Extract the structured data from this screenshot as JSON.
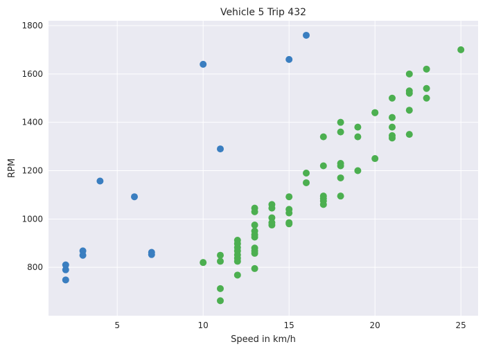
{
  "chart_data": {
    "type": "scatter",
    "title": "Vehicle 5 Trip 432",
    "xlabel": "Speed in km/h",
    "ylabel": "RPM",
    "xlim": [
      1,
      26
    ],
    "ylim": [
      600,
      1820
    ],
    "xticks": [
      5,
      10,
      15,
      20,
      25
    ],
    "yticks": [
      800,
      1000,
      1200,
      1400,
      1600,
      1800
    ],
    "grid": true,
    "background": "#EAEAF2",
    "series": [
      {
        "color": "#3A7EC0",
        "points": [
          [
            2,
            810
          ],
          [
            2,
            790
          ],
          [
            2,
            748
          ],
          [
            3,
            868
          ],
          [
            3,
            850
          ],
          [
            4,
            1157
          ],
          [
            6,
            1092
          ],
          [
            7,
            862
          ],
          [
            7,
            853
          ],
          [
            10,
            1640
          ],
          [
            11,
            1290
          ],
          [
            15,
            1660
          ],
          [
            16,
            1760
          ]
        ]
      },
      {
        "color": "#4CAF50",
        "points": [
          [
            10,
            820
          ],
          [
            11,
            850
          ],
          [
            11,
            825
          ],
          [
            11,
            712
          ],
          [
            11,
            662
          ],
          [
            12,
            912
          ],
          [
            12,
            898
          ],
          [
            12,
            882
          ],
          [
            12,
            868
          ],
          [
            12,
            852
          ],
          [
            12,
            838
          ],
          [
            12,
            825
          ],
          [
            12,
            768
          ],
          [
            13,
            1045
          ],
          [
            13,
            1030
          ],
          [
            13,
            975
          ],
          [
            13,
            950
          ],
          [
            13,
            935
          ],
          [
            13,
            925
          ],
          [
            13,
            880
          ],
          [
            13,
            868
          ],
          [
            13,
            858
          ],
          [
            13,
            795
          ],
          [
            14,
            1060
          ],
          [
            14,
            1045
          ],
          [
            14,
            1005
          ],
          [
            14,
            985
          ],
          [
            14,
            975
          ],
          [
            15,
            1092
          ],
          [
            15,
            1040
          ],
          [
            15,
            1025
          ],
          [
            15,
            985
          ],
          [
            15,
            980
          ],
          [
            16,
            1190
          ],
          [
            16,
            1150
          ],
          [
            17,
            1340
          ],
          [
            17,
            1220
          ],
          [
            17,
            1095
          ],
          [
            17,
            1085
          ],
          [
            17,
            1075
          ],
          [
            17,
            1060
          ],
          [
            18,
            1400
          ],
          [
            18,
            1360
          ],
          [
            18,
            1230
          ],
          [
            18,
            1220
          ],
          [
            18,
            1170
          ],
          [
            18,
            1095
          ],
          [
            19,
            1380
          ],
          [
            19,
            1340
          ],
          [
            19,
            1200
          ],
          [
            20,
            1440
          ],
          [
            20,
            1440
          ],
          [
            20,
            1250
          ],
          [
            21,
            1500
          ],
          [
            21,
            1420
          ],
          [
            21,
            1380
          ],
          [
            21,
            1345
          ],
          [
            21,
            1335
          ],
          [
            22,
            1600
          ],
          [
            22,
            1530
          ],
          [
            22,
            1520
          ],
          [
            22,
            1450
          ],
          [
            22,
            1350
          ],
          [
            23,
            1620
          ],
          [
            23,
            1540
          ],
          [
            23,
            1500
          ],
          [
            25,
            1700
          ]
        ]
      }
    ]
  }
}
